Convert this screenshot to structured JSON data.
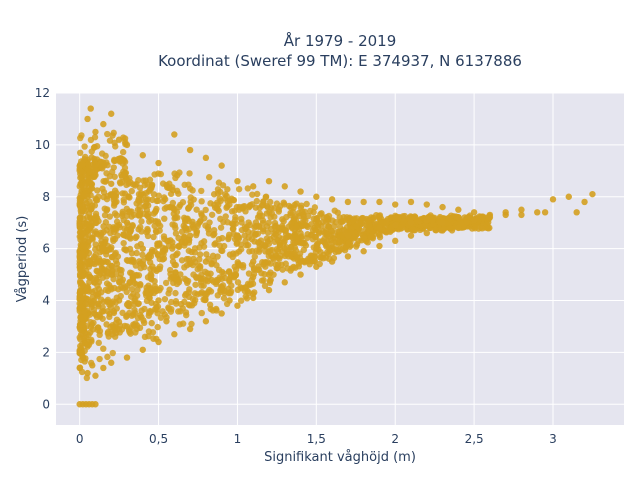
{
  "chart_data": {
    "type": "scatter",
    "title_line1": "År 1979 - 2019",
    "title_line2": "Koordinat (Sweref 99 TM): E 374937, N 6137886",
    "xlabel": "Signifikant våghöjd (m)",
    "ylabel": "Vågperiod (s)",
    "xlim": [
      -0.15,
      3.45
    ],
    "ylim": [
      -0.8,
      12
    ],
    "x_ticks": [
      0,
      0.5,
      1,
      1.5,
      2,
      2.5,
      3
    ],
    "x_tick_labels": [
      "0",
      "0,5",
      "1",
      "1,5",
      "2",
      "2,5",
      "3"
    ],
    "y_ticks": [
      0,
      2,
      4,
      6,
      8,
      10,
      12
    ],
    "y_tick_labels": [
      "0",
      "2",
      "4",
      "6",
      "8",
      "10",
      "12"
    ],
    "grid": true,
    "marker_color": "#D4A020",
    "background_color": "#E5E5EF",
    "series": [
      {
        "values": [
          [
            0.0,
            0.0
          ],
          [
            0.02,
            0.0
          ],
          [
            0.04,
            0.0
          ],
          [
            0.06,
            0.0
          ],
          [
            0.08,
            0.0
          ],
          [
            0.1,
            0.0
          ],
          [
            0.0,
            1.4
          ],
          [
            0.02,
            1.8
          ],
          [
            0.05,
            1.2
          ],
          [
            0.08,
            1.5
          ],
          [
            0.1,
            1.1
          ],
          [
            0.15,
            1.4
          ],
          [
            0.2,
            1.6
          ],
          [
            0.3,
            1.8
          ],
          [
            0.4,
            2.1
          ],
          [
            0.5,
            2.4
          ],
          [
            0.6,
            2.7
          ],
          [
            0.7,
            2.9
          ],
          [
            0.8,
            3.2
          ],
          [
            0.9,
            3.5
          ],
          [
            1.0,
            3.8
          ],
          [
            1.1,
            4.1
          ],
          [
            1.2,
            4.4
          ],
          [
            1.3,
            4.7
          ],
          [
            1.4,
            5.0
          ],
          [
            1.5,
            5.3
          ],
          [
            1.6,
            5.5
          ],
          [
            1.7,
            5.7
          ],
          [
            1.8,
            5.9
          ],
          [
            1.9,
            6.1
          ],
          [
            2.0,
            6.3
          ],
          [
            2.1,
            6.5
          ],
          [
            2.2,
            6.6
          ],
          [
            2.3,
            6.7
          ],
          [
            2.4,
            6.8
          ],
          [
            0.05,
            11.0
          ],
          [
            0.07,
            11.4
          ],
          [
            0.1,
            10.5
          ],
          [
            0.15,
            10.8
          ],
          [
            0.2,
            11.2
          ],
          [
            0.25,
            10.2
          ],
          [
            0.3,
            10.0
          ],
          [
            0.4,
            9.6
          ],
          [
            0.5,
            9.3
          ],
          [
            0.6,
            10.4
          ],
          [
            0.7,
            9.8
          ],
          [
            0.8,
            9.5
          ],
          [
            0.9,
            9.2
          ],
          [
            1.0,
            8.6
          ],
          [
            1.1,
            8.4
          ],
          [
            1.2,
            8.6
          ],
          [
            1.3,
            8.4
          ],
          [
            1.4,
            8.2
          ],
          [
            1.5,
            8.0
          ],
          [
            1.6,
            7.9
          ],
          [
            1.7,
            7.8
          ],
          [
            1.8,
            7.8
          ],
          [
            1.9,
            7.8
          ],
          [
            2.0,
            7.7
          ],
          [
            2.1,
            7.8
          ],
          [
            2.2,
            7.7
          ],
          [
            2.3,
            7.6
          ],
          [
            2.4,
            7.5
          ],
          [
            2.5,
            7.4
          ],
          [
            2.6,
            7.3
          ],
          [
            2.7,
            7.3
          ],
          [
            2.8,
            7.5
          ],
          [
            2.9,
            7.4
          ],
          [
            3.0,
            7.9
          ],
          [
            3.1,
            8.0
          ],
          [
            3.2,
            7.8
          ],
          [
            3.25,
            8.1
          ],
          [
            3.15,
            7.4
          ],
          [
            2.95,
            7.4
          ],
          [
            0.05,
            8.0
          ],
          [
            0.1,
            7.0
          ],
          [
            0.15,
            6.0
          ],
          [
            0.2,
            5.0
          ],
          [
            0.25,
            4.0
          ],
          [
            0.3,
            3.0
          ],
          [
            0.1,
            9.0
          ],
          [
            0.2,
            8.5
          ],
          [
            0.3,
            7.0
          ],
          [
            0.4,
            6.0
          ],
          [
            0.45,
            5.0
          ],
          [
            0.5,
            4.0
          ],
          [
            0.55,
            3.2
          ],
          [
            0.6,
            7.5
          ],
          [
            0.7,
            6.5
          ],
          [
            0.8,
            5.5
          ],
          [
            0.9,
            4.5
          ],
          [
            0.95,
            4.0
          ],
          [
            1.0,
            6.5
          ],
          [
            1.1,
            5.5
          ],
          [
            1.2,
            5.0
          ],
          [
            1.3,
            6.0
          ],
          [
            1.4,
            5.5
          ],
          [
            1.5,
            6.0
          ],
          [
            1.6,
            6.2
          ],
          [
            1.7,
            6.5
          ],
          [
            1.8,
            6.4
          ],
          [
            1.9,
            6.8
          ],
          [
            2.0,
            6.9
          ],
          [
            2.1,
            7.0
          ],
          [
            2.2,
            7.1
          ],
          [
            2.3,
            7.0
          ],
          [
            2.4,
            7.2
          ],
          [
            2.5,
            7.1
          ],
          [
            2.6,
            7.2
          ],
          [
            2.7,
            7.4
          ],
          [
            2.8,
            7.3
          ]
        ]
      }
    ]
  }
}
